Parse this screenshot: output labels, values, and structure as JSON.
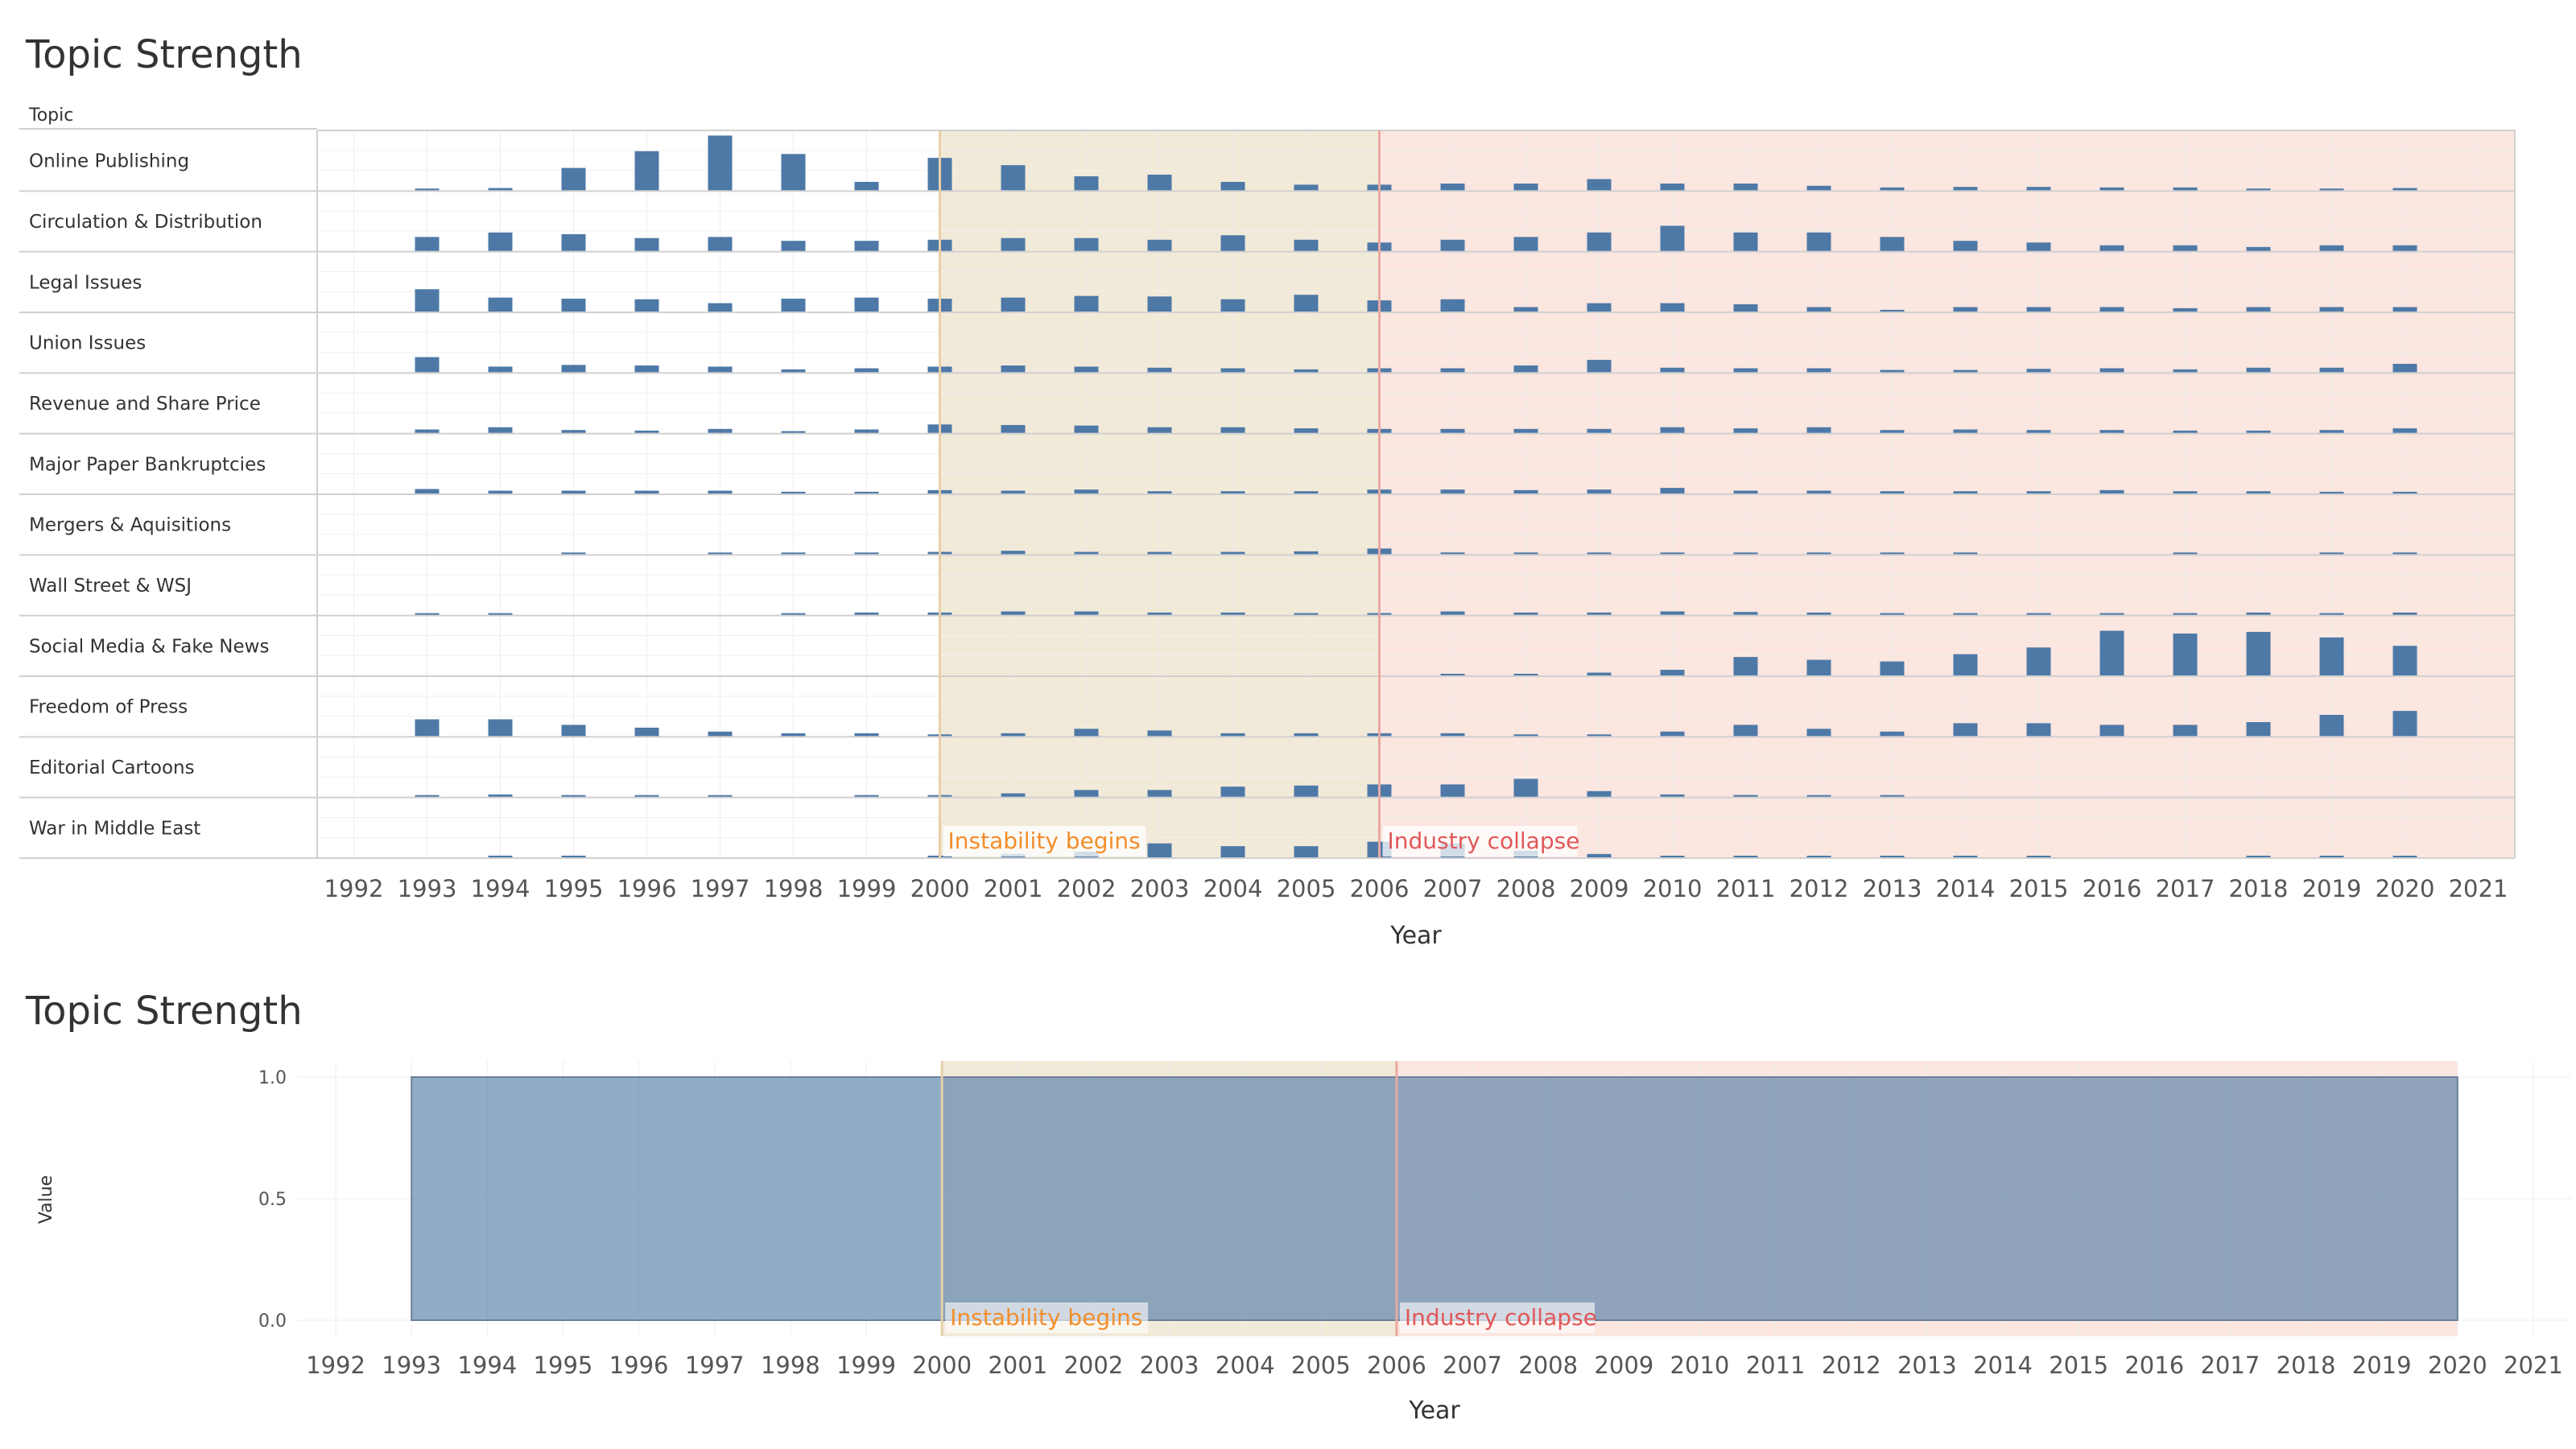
{
  "top_chart": {
    "title": "Topic Strength",
    "row_header": "Topic",
    "xlabel": "Year"
  },
  "bottom_chart": {
    "title": "Topic Strength",
    "xlabel": "Year",
    "ylabel": "Value"
  },
  "chart_data": [
    {
      "type": "bar",
      "title": "Topic Strength",
      "xlabel": "Year",
      "row_header": "Topic",
      "x": [
        1992,
        1993,
        1994,
        1995,
        1996,
        1997,
        1998,
        1999,
        2000,
        2001,
        2002,
        2003,
        2004,
        2005,
        2006,
        2007,
        2008,
        2009,
        2010,
        2011,
        2012,
        2013,
        2014,
        2015,
        2016,
        2017,
        2018,
        2019,
        2020,
        2021
      ],
      "bar_color": "#4e79a7",
      "annotations": [
        {
          "text": "Instability begins",
          "x_start": 2000,
          "x_end": 2006,
          "color": "#f28e2b",
          "band_color": "#f2ead9"
        },
        {
          "text": "Industry collapse",
          "x_start": 2006,
          "x_end": 2021,
          "color": "#e15759",
          "band_color": "#fbe6e0"
        }
      ],
      "series": [
        {
          "name": "Online Publishing",
          "values": [
            null,
            0.03,
            0.04,
            0.4,
            0.7,
            0.98,
            0.65,
            0.15,
            0.58,
            0.45,
            0.25,
            0.28,
            0.15,
            0.1,
            0.1,
            0.12,
            0.12,
            0.2,
            0.12,
            0.12,
            0.08,
            0.05,
            0.06,
            0.06,
            0.05,
            0.05,
            0.03,
            0.03,
            0.04,
            null
          ]
        },
        {
          "name": "Circulation & Distribution",
          "values": [
            null,
            0.25,
            0.33,
            0.3,
            0.23,
            0.25,
            0.18,
            0.18,
            0.2,
            0.23,
            0.23,
            0.2,
            0.28,
            0.2,
            0.15,
            0.2,
            0.25,
            0.33,
            0.45,
            0.33,
            0.33,
            0.25,
            0.18,
            0.15,
            0.1,
            0.1,
            0.07,
            0.1,
            0.1,
            null
          ]
        },
        {
          "name": "Legal Issues",
          "values": [
            null,
            0.4,
            0.25,
            0.23,
            0.22,
            0.15,
            0.23,
            0.25,
            0.23,
            0.25,
            0.28,
            0.27,
            0.22,
            0.3,
            0.2,
            0.22,
            0.08,
            0.15,
            0.15,
            0.13,
            0.08,
            0.03,
            0.08,
            0.08,
            0.08,
            0.06,
            0.08,
            0.08,
            0.08,
            null
          ]
        },
        {
          "name": "Union Issues",
          "values": [
            null,
            0.27,
            0.1,
            0.13,
            0.12,
            0.1,
            0.05,
            0.07,
            0.1,
            0.12,
            0.1,
            0.08,
            0.07,
            0.05,
            0.07,
            0.07,
            0.12,
            0.22,
            0.08,
            0.07,
            0.07,
            0.04,
            0.04,
            0.06,
            0.07,
            0.05,
            0.08,
            0.08,
            0.15,
            null
          ]
        },
        {
          "name": "Revenue and Share Price",
          "values": [
            null,
            0.06,
            0.1,
            0.05,
            0.04,
            0.07,
            0.03,
            0.06,
            0.15,
            0.14,
            0.13,
            0.1,
            0.1,
            0.08,
            0.07,
            0.07,
            0.07,
            0.07,
            0.1,
            0.08,
            0.1,
            0.05,
            0.06,
            0.05,
            0.05,
            0.04,
            0.04,
            0.05,
            0.08,
            null
          ]
        },
        {
          "name": "Major Paper Bankruptcies",
          "values": [
            null,
            0.08,
            0.05,
            0.05,
            0.05,
            0.05,
            0.03,
            0.03,
            0.06,
            0.05,
            0.07,
            0.04,
            0.04,
            0.04,
            0.07,
            0.07,
            0.06,
            0.07,
            0.1,
            0.05,
            0.05,
            0.04,
            0.04,
            0.04,
            0.06,
            0.04,
            0.04,
            0.03,
            0.03,
            null
          ]
        },
        {
          "name": "Mergers & Aquisitions",
          "values": [
            null,
            null,
            null,
            0.02,
            null,
            0.02,
            0.02,
            0.02,
            0.04,
            0.06,
            0.04,
            0.04,
            0.04,
            0.05,
            0.1,
            0.03,
            0.02,
            0.02,
            0.02,
            0.02,
            0.02,
            0.02,
            0.02,
            null,
            null,
            0.02,
            null,
            0.02,
            0.02,
            null
          ]
        },
        {
          "name": "Wall Street & WSJ",
          "values": [
            null,
            0.02,
            0.02,
            null,
            null,
            null,
            0.02,
            0.04,
            0.04,
            0.06,
            0.06,
            0.04,
            0.04,
            0.03,
            0.03,
            0.06,
            0.04,
            0.04,
            0.06,
            0.05,
            0.04,
            0.03,
            0.03,
            0.03,
            0.03,
            0.03,
            0.04,
            0.03,
            0.04,
            null
          ]
        },
        {
          "name": "Social Media & Fake News",
          "values": [
            null,
            null,
            null,
            null,
            null,
            null,
            null,
            null,
            null,
            null,
            null,
            null,
            null,
            null,
            null,
            0.02,
            0.02,
            0.05,
            0.1,
            0.33,
            0.28,
            0.25,
            0.38,
            0.5,
            0.8,
            0.75,
            0.78,
            0.68,
            0.53,
            null
          ]
        },
        {
          "name": "Freedom of Press",
          "values": [
            null,
            0.3,
            0.3,
            0.2,
            0.15,
            0.08,
            0.05,
            0.05,
            0.03,
            0.05,
            0.13,
            0.1,
            0.05,
            0.05,
            0.05,
            0.05,
            0.03,
            0.03,
            0.08,
            0.2,
            0.13,
            0.08,
            0.23,
            0.23,
            0.2,
            0.2,
            0.25,
            0.38,
            0.45,
            null
          ]
        },
        {
          "name": "Editorial Cartoons",
          "values": [
            null,
            0.02,
            0.04,
            0.02,
            0.02,
            0.02,
            null,
            0.02,
            0.02,
            0.06,
            0.12,
            0.12,
            0.18,
            0.2,
            0.22,
            0.22,
            0.32,
            0.1,
            0.04,
            0.03,
            0.02,
            0.02,
            null,
            null,
            null,
            null,
            null,
            null,
            null,
            null
          ]
        },
        {
          "name": "War in Middle East",
          "values": [
            null,
            null,
            0.03,
            0.03,
            null,
            null,
            null,
            null,
            0.03,
            0.06,
            0.1,
            0.25,
            0.2,
            0.2,
            0.28,
            0.25,
            0.12,
            0.06,
            0.02,
            0.02,
            0.02,
            0.02,
            0.02,
            0.02,
            null,
            null,
            0.02,
            0.02,
            0.02,
            null
          ]
        }
      ]
    },
    {
      "type": "area",
      "title": "Topic Strength",
      "xlabel": "Year",
      "ylabel": "Value",
      "x": [
        1992,
        1993,
        1994,
        1995,
        1996,
        1997,
        1998,
        1999,
        2000,
        2001,
        2002,
        2003,
        2004,
        2005,
        2006,
        2007,
        2008,
        2009,
        2010,
        2011,
        2012,
        2013,
        2014,
        2015,
        2016,
        2017,
        2018,
        2019,
        2020,
        2021
      ],
      "y_ticks": [
        "1.0",
        "0.5",
        "0.0"
      ],
      "ylim": [
        0,
        1.0
      ],
      "area": {
        "x_start": 1993,
        "x_end": 2020,
        "value": 1.0,
        "color": "#4e79a7"
      },
      "annotations": [
        {
          "text": "Instability begins",
          "x_start": 2000,
          "x_end": 2006,
          "color": "#f28e2b",
          "band_color": "#f2ead9"
        },
        {
          "text": "Industry collapse",
          "x_start": 2006,
          "x_end": 2020,
          "color": "#e15759",
          "band_color": "#fbe6e0"
        }
      ]
    }
  ]
}
